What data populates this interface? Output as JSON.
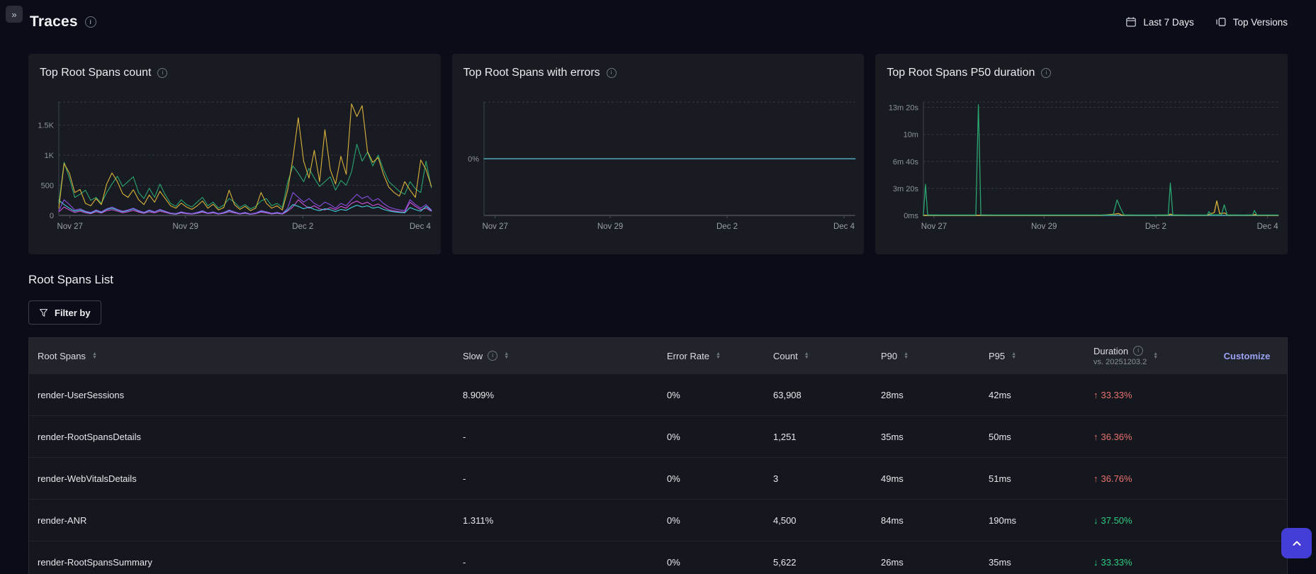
{
  "header": {
    "collapse_icon": "»",
    "title": "Traces",
    "controls": [
      {
        "label": "Last 7 Days",
        "icon": "calendar-icon"
      },
      {
        "label": "Top Versions",
        "icon": "versions-icon"
      }
    ]
  },
  "colors": {
    "background": "#0a0d17",
    "card": "#191b23",
    "up_change": "#e8736f",
    "down_change": "#2ecc83",
    "customize_link": "#9aa3f4",
    "scroll_button": "#443ed6",
    "grid": "#363942",
    "axis": "#4a4e57",
    "tick_label": "#8e929b"
  },
  "chart_data": [
    {
      "type": "line",
      "title": "Top Root Spans count",
      "ylim": [
        0,
        1880
      ],
      "grid": "dashed",
      "legend_position": "none",
      "yticks": [
        {
          "v": 0,
          "label": "0",
          "grid": false
        },
        {
          "v": 500,
          "label": "500",
          "grid": true
        },
        {
          "v": 1000,
          "label": "1K",
          "grid": true
        },
        {
          "v": 1500,
          "label": "1.5K",
          "grid": true
        }
      ],
      "xticks": [
        {
          "t": 0.03,
          "label": "Nov 27"
        },
        {
          "t": 0.34,
          "label": "Nov 29"
        },
        {
          "t": 0.655,
          "label": "Dec 2"
        },
        {
          "t": 0.97,
          "label": "Dec 4"
        }
      ],
      "series": [
        {
          "name": "series-magenta",
          "color": "#cf52d9",
          "width": 1.1,
          "values": [
            60,
            140,
            90,
            50,
            70,
            45,
            30,
            60,
            40,
            80,
            95,
            70,
            45,
            60,
            85,
            55,
            35,
            60,
            42,
            70,
            50,
            28,
            20,
            42,
            28,
            22,
            35,
            55,
            30,
            42,
            22,
            35,
            60,
            42,
            22,
            35,
            18,
            30,
            55,
            42,
            25,
            35,
            22,
            70,
            140,
            260,
            180,
            120,
            160,
            110,
            90,
            130,
            95,
            150,
            120,
            200,
            240,
            190,
            220,
            160,
            190,
            140,
            95,
            75,
            60,
            55,
            220,
            150,
            95,
            120,
            70
          ]
        },
        {
          "name": "series-cyan",
          "color": "#45d2e0",
          "width": 1.1,
          "values": [
            250,
            180,
            120,
            70,
            90,
            60,
            40,
            80,
            50,
            100,
            120,
            90,
            60,
            80,
            110,
            70,
            45,
            80,
            55,
            90,
            65,
            35,
            25,
            55,
            35,
            28,
            45,
            70,
            38,
            55,
            28,
            45,
            80,
            55,
            28,
            45,
            22,
            38,
            70,
            55,
            32,
            45,
            28,
            90,
            180,
            150,
            110,
            140,
            100,
            80,
            110,
            95,
            65,
            100,
            85,
            130,
            170,
            140,
            160,
            120,
            140,
            100,
            75,
            60,
            50,
            45,
            130,
            95,
            70,
            150,
            80
          ]
        },
        {
          "name": "series-purple",
          "color": "#8a4fe0",
          "width": 1.1,
          "values": [
            80,
            260,
            180,
            90,
            110,
            70,
            50,
            90,
            60,
            110,
            140,
            100,
            70,
            90,
            120,
            80,
            50,
            90,
            60,
            100,
            70,
            40,
            30,
            60,
            40,
            30,
            50,
            80,
            40,
            60,
            30,
            50,
            90,
            60,
            30,
            50,
            25,
            40,
            80,
            60,
            35,
            50,
            30,
            120,
            380,
            300,
            220,
            280,
            200,
            150,
            220,
            180,
            120,
            200,
            160,
            260,
            350,
            280,
            320,
            240,
            280,
            200,
            140,
            110,
            90,
            80,
            260,
            180,
            120,
            180,
            90
          ]
        },
        {
          "name": "series-green",
          "color": "#2aa46e",
          "width": 1.1,
          "values": [
            200,
            880,
            620,
            300,
            350,
            420,
            250,
            300,
            200,
            380,
            520,
            650,
            480,
            560,
            640,
            380,
            280,
            450,
            300,
            520,
            340,
            200,
            150,
            260,
            180,
            140,
            220,
            300,
            160,
            220,
            120,
            170,
            280,
            220,
            130,
            180,
            110,
            150,
            240,
            280,
            160,
            200,
            130,
            550,
            820,
            700,
            560,
            780,
            620,
            480,
            560,
            640,
            420,
            580,
            500,
            720,
            1180,
            900,
            1050,
            820,
            1000,
            760,
            560,
            480,
            400,
            350,
            560,
            440,
            380,
            900,
            460
          ]
        },
        {
          "name": "series-yellow",
          "color": "#d9b23a",
          "width": 1.1,
          "values": [
            120,
            860,
            700,
            380,
            430,
            200,
            160,
            280,
            180,
            520,
            705,
            560,
            360,
            300,
            425,
            260,
            180,
            340,
            220,
            400,
            280,
            160,
            120,
            205,
            140,
            100,
            160,
            240,
            120,
            185,
            90,
            130,
            420,
            180,
            100,
            150,
            80,
            120,
            380,
            200,
            120,
            160,
            90,
            420,
            950,
            1620,
            900,
            620,
            1080,
            560,
            1420,
            760,
            520,
            980,
            680,
            1850,
            1640,
            1820,
            1060,
            880,
            960,
            680,
            470,
            380,
            320,
            560,
            420,
            300,
            920,
            760,
            480
          ]
        }
      ]
    },
    {
      "type": "line",
      "title": "Top Root Spans with errors",
      "ylim": [
        -1,
        1
      ],
      "grid": "dashed-top-only",
      "legend_position": "none",
      "yticks": [
        {
          "v": 0,
          "label": "0%",
          "grid": false
        }
      ],
      "xticks": [
        {
          "t": 0.03,
          "label": "Nov 27"
        },
        {
          "t": 0.34,
          "label": "Nov 29"
        },
        {
          "t": 0.655,
          "label": "Dec 2"
        },
        {
          "t": 0.97,
          "label": "Dec 4"
        }
      ],
      "series": [
        {
          "name": "error-rate-flat",
          "color": "#4fa8b8",
          "width": 1.6,
          "points": [
            [
              0,
              0
            ],
            [
              1,
              0
            ]
          ]
        }
      ]
    },
    {
      "type": "line",
      "title": "Top Root Spans P50 duration",
      "ylim": [
        0,
        840
      ],
      "grid": "dashed",
      "legend_position": "none",
      "yticks": [
        {
          "v": 0,
          "label": "0ms",
          "grid": false
        },
        {
          "v": 200,
          "label": "3m 20s",
          "grid": true
        },
        {
          "v": 400,
          "label": "6m 40s",
          "grid": true
        },
        {
          "v": 600,
          "label": "10m",
          "grid": true
        },
        {
          "v": 800,
          "label": "13m 20s",
          "grid": true
        }
      ],
      "xticks": [
        {
          "t": 0.03,
          "label": "Nov 27"
        },
        {
          "t": 0.34,
          "label": "Nov 29"
        },
        {
          "t": 0.655,
          "label": "Dec 2"
        },
        {
          "t": 0.97,
          "label": "Dec 4"
        }
      ],
      "series": [
        {
          "name": "p50-baseline",
          "color": "#4fa8b8",
          "width": 1.5,
          "points": [
            [
              0,
              0
            ],
            [
              1,
              0
            ]
          ]
        },
        {
          "name": "p50-yellow",
          "color": "#d9b23a",
          "width": 1.3,
          "points": [
            [
              0,
              1
            ],
            [
              0.5,
              1
            ],
            [
              0.54,
              10
            ],
            [
              0.55,
              14
            ],
            [
              0.56,
              2
            ],
            [
              0.69,
              2
            ],
            [
              0.697,
              10
            ],
            [
              0.704,
              2
            ],
            [
              0.8,
              2
            ],
            [
              0.81,
              12
            ],
            [
              0.82,
              22
            ],
            [
              0.827,
              108
            ],
            [
              0.835,
              14
            ],
            [
              0.85,
              18
            ],
            [
              0.858,
              2
            ],
            [
              0.93,
              2
            ],
            [
              0.935,
              8
            ],
            [
              0.94,
              1
            ],
            [
              1,
              1
            ]
          ]
        },
        {
          "name": "p50-green",
          "color": "#2aa46e",
          "width": 1.3,
          "points": [
            [
              0,
              3
            ],
            [
              0.006,
              230
            ],
            [
              0.012,
              4
            ],
            [
              0.05,
              3
            ],
            [
              0.1,
              3
            ],
            [
              0.148,
              3
            ],
            [
              0.155,
              820
            ],
            [
              0.162,
              4
            ],
            [
              0.2,
              3
            ],
            [
              0.3,
              3
            ],
            [
              0.4,
              3
            ],
            [
              0.5,
              3
            ],
            [
              0.535,
              3
            ],
            [
              0.546,
              115
            ],
            [
              0.556,
              50
            ],
            [
              0.565,
              4
            ],
            [
              0.6,
              3
            ],
            [
              0.65,
              3
            ],
            [
              0.69,
              4
            ],
            [
              0.696,
              240
            ],
            [
              0.703,
              4
            ],
            [
              0.75,
              3
            ],
            [
              0.8,
              3
            ],
            [
              0.805,
              28
            ],
            [
              0.812,
              4
            ],
            [
              0.84,
              4
            ],
            [
              0.848,
              78
            ],
            [
              0.856,
              4
            ],
            [
              0.9,
              3
            ],
            [
              0.928,
              4
            ],
            [
              0.933,
              36
            ],
            [
              0.94,
              3
            ],
            [
              1,
              3
            ]
          ]
        }
      ]
    }
  ],
  "list": {
    "heading": "Root Spans List",
    "filter_label": "Filter by",
    "customize_label": "Customize",
    "table": {
      "columns": [
        {
          "key": "name",
          "label": "Root Spans",
          "sortable": true
        },
        {
          "key": "slow",
          "label": "Slow",
          "info": true,
          "sortable": true
        },
        {
          "key": "error_rate",
          "label": "Error Rate",
          "sortable": true
        },
        {
          "key": "count",
          "label": "Count",
          "sortable": true
        },
        {
          "key": "p90",
          "label": "P90",
          "sortable": true
        },
        {
          "key": "p95",
          "label": "P95",
          "sortable": true
        },
        {
          "key": "duration",
          "label": "Duration",
          "info": true,
          "sub": "vs. 20251203.2",
          "sortable": true
        },
        {
          "key": "customize",
          "label": "Customize",
          "is_link": true
        }
      ],
      "rows": [
        {
          "name": "render-UserSessions",
          "slow": "8.909%",
          "error_rate": "0%",
          "count": "63,908",
          "p90": "28ms",
          "p95": "42ms",
          "duration_change": "33.33%",
          "direction": "up"
        },
        {
          "name": "render-RootSpansDetails",
          "slow": "-",
          "error_rate": "0%",
          "count": "1,251",
          "p90": "35ms",
          "p95": "50ms",
          "duration_change": "36.36%",
          "direction": "up"
        },
        {
          "name": "render-WebVitalsDetails",
          "slow": "-",
          "error_rate": "0%",
          "count": "3",
          "p90": "49ms",
          "p95": "51ms",
          "duration_change": "36.76%",
          "direction": "up"
        },
        {
          "name": "render-ANR",
          "slow": "1.311%",
          "error_rate": "0%",
          "count": "4,500",
          "p90": "84ms",
          "p95": "190ms",
          "duration_change": "37.50%",
          "direction": "down"
        },
        {
          "name": "render-RootSpansSummary",
          "slow": "-",
          "error_rate": "0%",
          "count": "5,622",
          "p90": "26ms",
          "p95": "35ms",
          "duration_change": "33.33%",
          "direction": "down"
        }
      ]
    }
  }
}
